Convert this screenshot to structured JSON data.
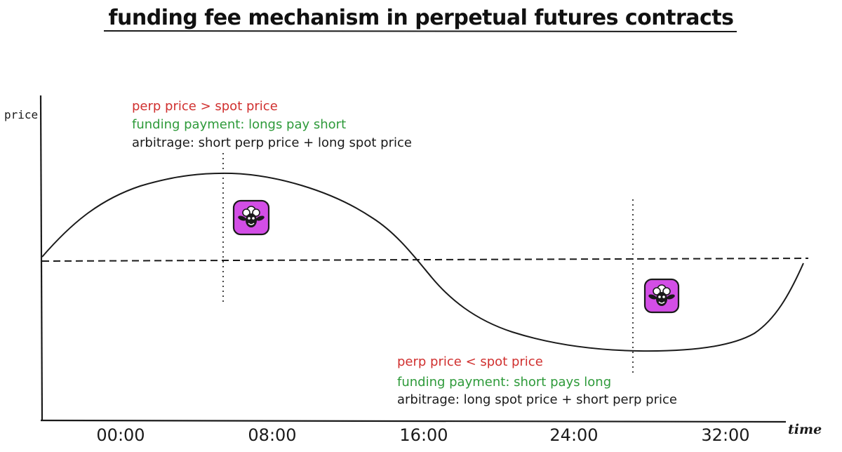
{
  "title": "funding fee mechanism in perpetual futures contracts",
  "axes": {
    "y_label": "price",
    "x_label": "time",
    "x_ticks": [
      "00:00",
      "08:00",
      "16:00",
      "24:00",
      "32:00"
    ]
  },
  "annotations": {
    "above": {
      "condition": "perp price > spot price",
      "funding": "funding payment: longs pay short",
      "arbitrage": "arbitrage: short perp price + long spot price"
    },
    "below": {
      "condition": "perp price < spot price",
      "funding": "funding payment: short pays long",
      "arbitrage": "arbitrage: long spot price + short perp price"
    }
  },
  "colors": {
    "condition": "#d0302f",
    "funding": "#2e9a3a",
    "badge": "#d34ee6",
    "line": "#1a1a1a"
  },
  "icons": [
    "sheep-logo-icon",
    "sheep-logo-icon"
  ]
}
